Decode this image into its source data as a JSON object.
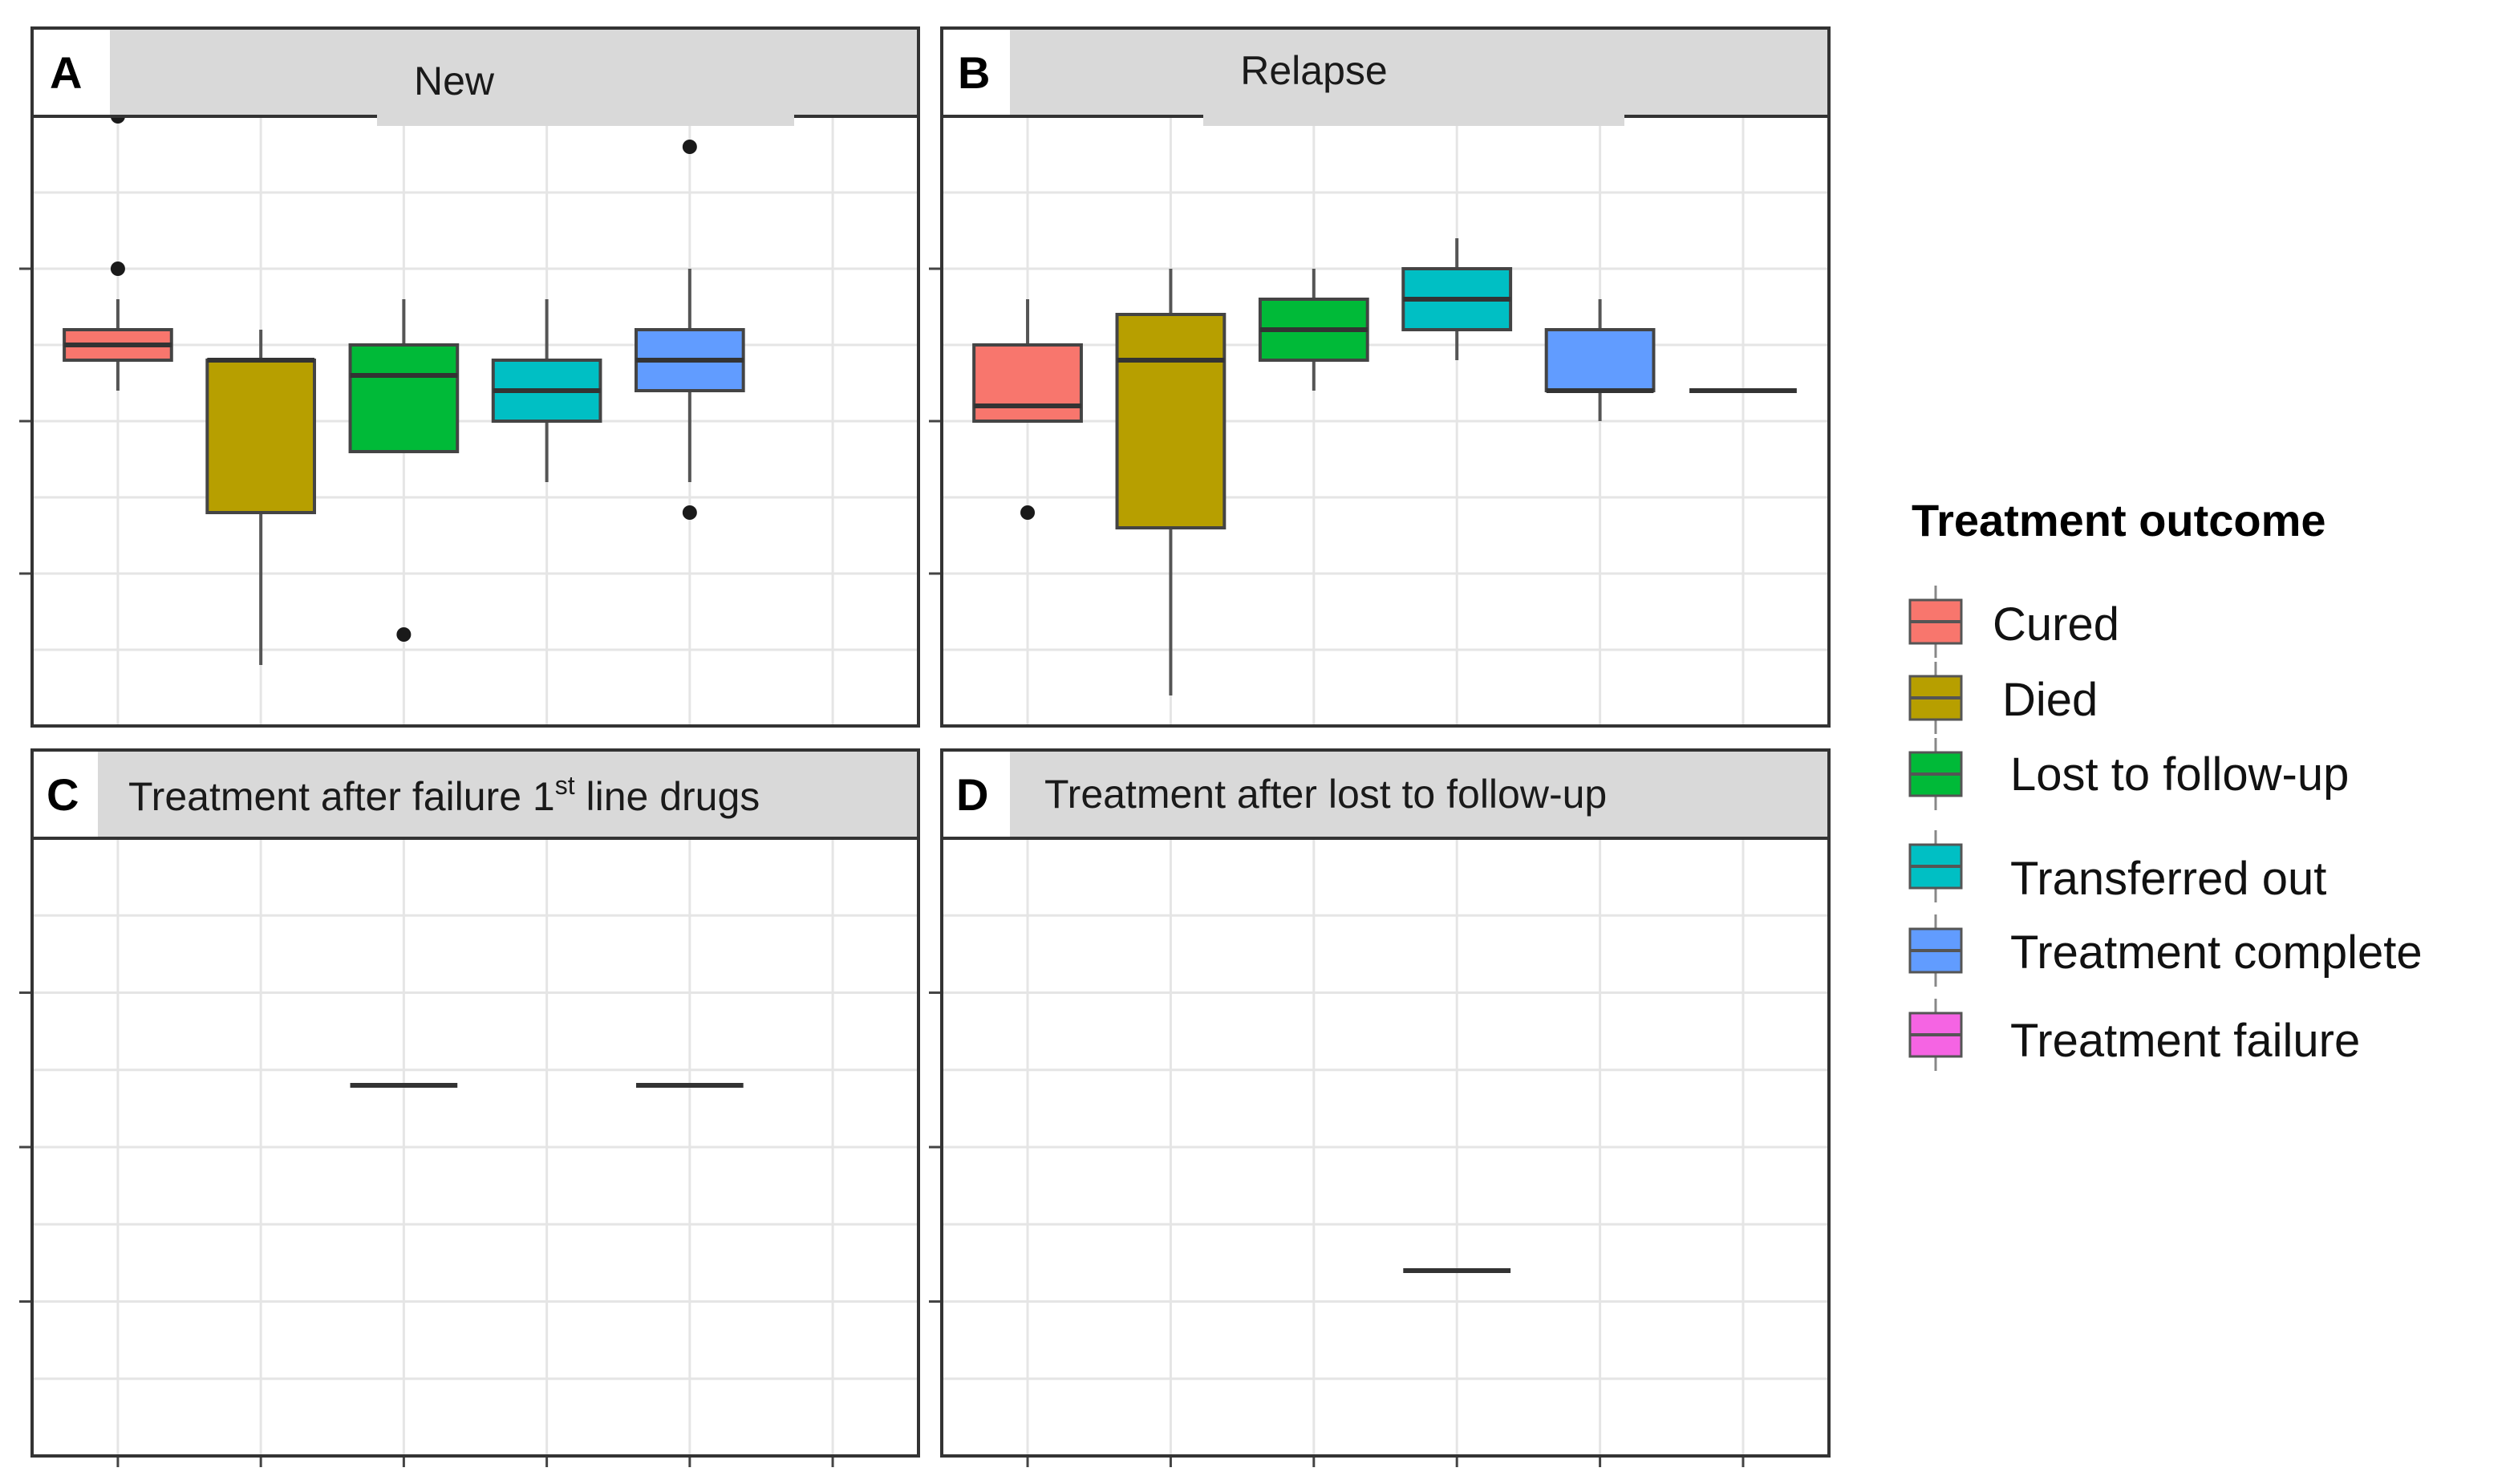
{
  "chart_data": {
    "type": "box",
    "y_axis_range": [
      0,
      4
    ],
    "grid": true,
    "legend": {
      "title": "Treatment outcome",
      "placement": "right",
      "entries": [
        {
          "label": "Cured",
          "color": "#F8766D"
        },
        {
          "label": "Died",
          "color": "#B79F00"
        },
        {
          "label": "Lost to follow-up",
          "color": "#00BA38"
        },
        {
          "label": "Transferred out",
          "color": "#00BFC4"
        },
        {
          "label": "Treatment complete",
          "color": "#619CFF"
        },
        {
          "label": "Treatment failure",
          "color": "#F564E3"
        }
      ]
    },
    "panels": [
      {
        "letter": "A",
        "title": "New",
        "boxes": [
          {
            "category": "Cured",
            "q1": 2.4,
            "median": 2.5,
            "q3": 2.6,
            "whisker_low": 2.2,
            "whisker_high": 2.8,
            "outliers": [
              3.0,
              4.0
            ]
          },
          {
            "category": "Died",
            "q1": 1.4,
            "median": 2.4,
            "q3": 2.4,
            "whisker_low": 0.4,
            "whisker_high": 2.6,
            "outliers": []
          },
          {
            "category": "Lost to follow-up",
            "q1": 1.8,
            "median": 2.3,
            "q3": 2.5,
            "whisker_low": 1.8,
            "whisker_high": 2.8,
            "outliers": [
              0.6
            ]
          },
          {
            "category": "Transferred out",
            "q1": 2.0,
            "median": 2.2,
            "q3": 2.4,
            "whisker_low": 1.6,
            "whisker_high": 2.8,
            "outliers": []
          },
          {
            "category": "Treatment complete",
            "q1": 2.2,
            "median": 2.4,
            "q3": 2.6,
            "whisker_low": 1.6,
            "whisker_high": 3.0,
            "outliers": [
              1.4,
              3.8
            ]
          }
        ]
      },
      {
        "letter": "B",
        "title": "Relapse",
        "boxes": [
          {
            "category": "Cured",
            "q1": 2.0,
            "median": 2.1,
            "q3": 2.5,
            "whisker_low": 2.0,
            "whisker_high": 2.8,
            "outliers": [
              1.4
            ]
          },
          {
            "category": "Died",
            "q1": 1.3,
            "median": 2.4,
            "q3": 2.7,
            "whisker_low": 0.2,
            "whisker_high": 3.0,
            "outliers": []
          },
          {
            "category": "Lost to follow-up",
            "q1": 2.4,
            "median": 2.6,
            "q3": 2.8,
            "whisker_low": 2.2,
            "whisker_high": 3.0,
            "outliers": []
          },
          {
            "category": "Transferred out",
            "q1": 2.6,
            "median": 2.8,
            "q3": 3.0,
            "whisker_low": 2.4,
            "whisker_high": 3.2,
            "outliers": []
          },
          {
            "category": "Treatment complete",
            "q1": 2.2,
            "median": 2.2,
            "q3": 2.6,
            "whisker_low": 2.0,
            "whisker_high": 2.8,
            "outliers": []
          },
          {
            "category": "Treatment failure",
            "q1": 2.2,
            "median": 2.2,
            "q3": 2.2,
            "whisker_low": 2.2,
            "whisker_high": 2.2,
            "outliers": []
          }
        ]
      },
      {
        "letter": "C",
        "title_prefix": "Treatment after failure 1",
        "title_sup": "st",
        "title_suffix": " line drugs",
        "boxes": [
          {
            "category": "Lost to follow-up",
            "q1": 2.4,
            "median": 2.4,
            "q3": 2.4,
            "whisker_low": 2.4,
            "whisker_high": 2.4,
            "outliers": []
          },
          {
            "category": "Treatment complete",
            "q1": 2.4,
            "median": 2.4,
            "q3": 2.4,
            "whisker_low": 2.4,
            "whisker_high": 2.4,
            "outliers": []
          }
        ]
      },
      {
        "letter": "D",
        "title": "Treatment after lost to follow-up",
        "boxes": [
          {
            "category": "Transferred out",
            "q1": 1.2,
            "median": 1.2,
            "q3": 1.2,
            "whisker_low": 1.2,
            "whisker_high": 1.2,
            "outliers": []
          }
        ]
      }
    ]
  }
}
